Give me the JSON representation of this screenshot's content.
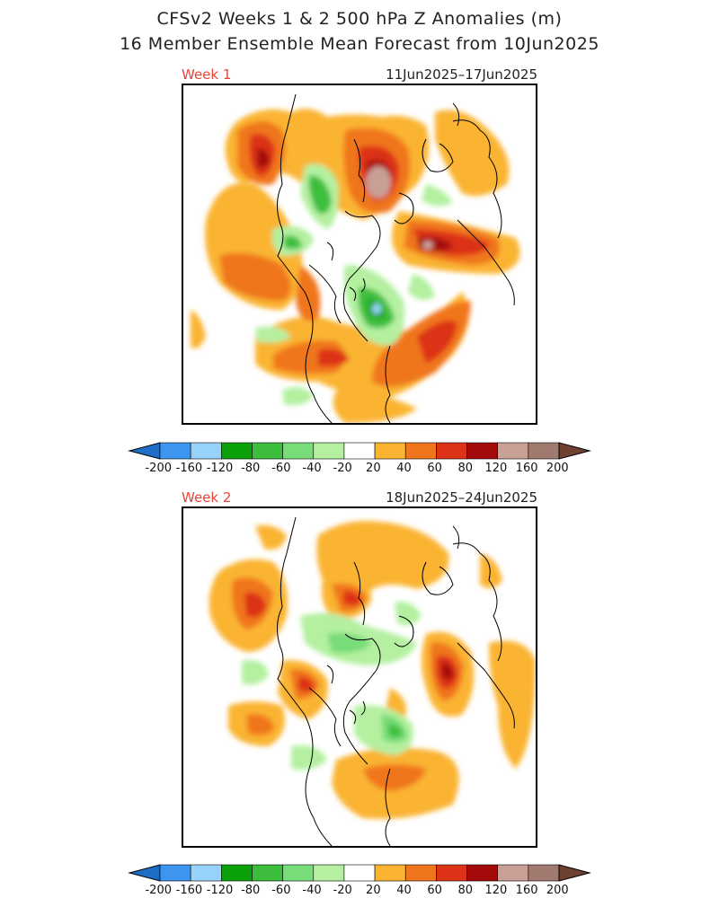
{
  "title": {
    "line1": "CFSv2 Weeks 1 & 2 500 hPa Z Anomalies (m)",
    "line2": "16 Member Ensemble Mean Forecast from 10Jun2025"
  },
  "panels": [
    {
      "label": "Week 1",
      "dates": "11Jun2025–17Jun2025"
    },
    {
      "label": "Week 2",
      "dates": "18Jun2025–24Jun2025"
    }
  ],
  "colorbar": {
    "levels": [
      "-200",
      "-160",
      "-120",
      "-80",
      "-60",
      "-40",
      "-20",
      "20",
      "40",
      "60",
      "80",
      "120",
      "160",
      "200"
    ],
    "colors": [
      "#1e6ec8",
      "#3c96f0",
      "#96d2fa",
      "#0aa00a",
      "#3cbe3c",
      "#78dc78",
      "#b4f0a0",
      "#ffffff",
      "#fab432",
      "#f0761e",
      "#dc3218",
      "#a50a0a",
      "#c8a096",
      "#a07a6e",
      "#6e4132"
    ]
  }
}
